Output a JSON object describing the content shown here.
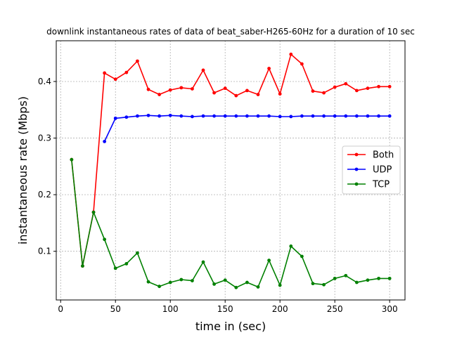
{
  "chart_data": {
    "type": "line",
    "title": "downlink instantaneous rates of data of beat_saber-H265-60Hz for a duration of 10 sec",
    "xlabel": "time in (sec)",
    "ylabel": "instantaneous rate (Mbps)",
    "xlim": [
      -4,
      314
    ],
    "ylim": [
      0.014,
      0.472
    ],
    "xticks": [
      0,
      50,
      100,
      150,
      200,
      250,
      300
    ],
    "xtick_labels": [
      "0",
      "50",
      "100",
      "150",
      "200",
      "250",
      "300"
    ],
    "yticks": [
      0.1,
      0.2,
      0.3,
      0.4
    ],
    "ytick_labels": [
      "0.1",
      "0.2",
      "0.3",
      "0.4"
    ],
    "grid": true,
    "legend_position": "center-right",
    "series": [
      {
        "name": "Both",
        "color": "#ff0000",
        "x": [
          10,
          20,
          30,
          40,
          50,
          60,
          70,
          80,
          90,
          100,
          110,
          120,
          130,
          140,
          150,
          160,
          170,
          180,
          190,
          200,
          210,
          220,
          230,
          240,
          250,
          260,
          270,
          280,
          290,
          300
        ],
        "y": [
          0.262,
          0.074,
          0.169,
          0.415,
          0.404,
          0.416,
          0.436,
          0.386,
          0.377,
          0.385,
          0.389,
          0.387,
          0.42,
          0.38,
          0.388,
          0.375,
          0.384,
          0.377,
          0.423,
          0.378,
          0.448,
          0.431,
          0.383,
          0.38,
          0.39,
          0.396,
          0.384,
          0.388,
          0.391,
          0.391
        ]
      },
      {
        "name": "UDP",
        "color": "#0000ff",
        "x": [
          40,
          50,
          60,
          70,
          80,
          90,
          100,
          110,
          120,
          130,
          140,
          150,
          160,
          170,
          180,
          190,
          200,
          210,
          220,
          230,
          240,
          250,
          260,
          270,
          280,
          290,
          300
        ],
        "y": [
          0.294,
          0.335,
          0.337,
          0.339,
          0.34,
          0.339,
          0.34,
          0.339,
          0.338,
          0.339,
          0.339,
          0.339,
          0.339,
          0.339,
          0.339,
          0.339,
          0.338,
          0.338,
          0.339,
          0.339,
          0.339,
          0.339,
          0.339,
          0.339,
          0.339,
          0.339,
          0.339
        ]
      },
      {
        "name": "TCP",
        "color": "#008000",
        "x": [
          10,
          20,
          30,
          40,
          50,
          60,
          70,
          80,
          90,
          100,
          110,
          120,
          130,
          140,
          150,
          160,
          170,
          180,
          190,
          200,
          210,
          220,
          230,
          240,
          250,
          260,
          270,
          280,
          290,
          300
        ],
        "y": [
          0.262,
          0.074,
          0.169,
          0.121,
          0.07,
          0.078,
          0.097,
          0.046,
          0.038,
          0.045,
          0.05,
          0.048,
          0.081,
          0.042,
          0.049,
          0.036,
          0.045,
          0.037,
          0.084,
          0.04,
          0.109,
          0.091,
          0.043,
          0.041,
          0.052,
          0.057,
          0.045,
          0.049,
          0.052,
          0.052
        ]
      }
    ]
  }
}
